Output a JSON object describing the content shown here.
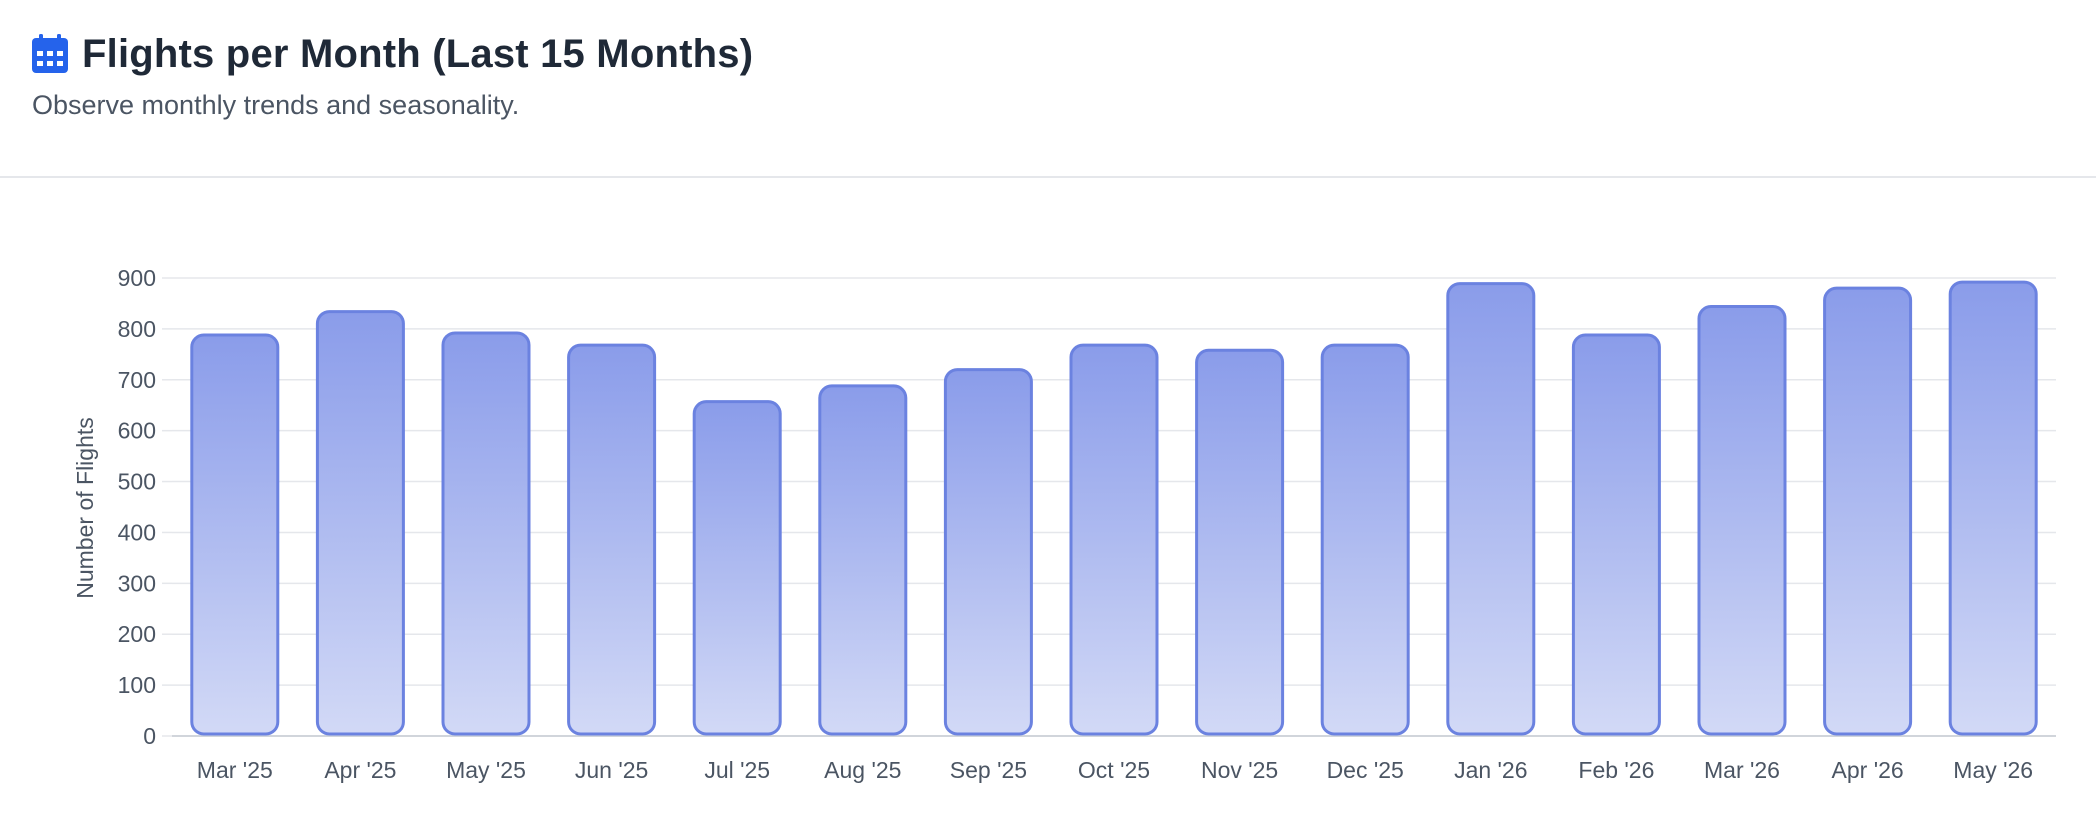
{
  "header": {
    "title": "Flights per Month (Last 15 Months)",
    "subtitle": "Observe monthly trends and seasonality.",
    "icon": "calendar-icon"
  },
  "colors": {
    "accent": "#2563eb",
    "bar_top": "#8a9cea",
    "bar_bottom": "#d2d9f6",
    "bar_border": "#6b82e0",
    "grid": "#e5e7eb",
    "axis_text": "#4b5563"
  },
  "chart_data": {
    "type": "bar",
    "categories": [
      "Mar '25",
      "Apr '25",
      "May '25",
      "Jun '25",
      "Jul '25",
      "Aug '25",
      "Sep '25",
      "Oct '25",
      "Nov '25",
      "Dec '25",
      "Jan '26",
      "Feb '26",
      "Mar '26",
      "Apr '26",
      "May '26"
    ],
    "series": [
      {
        "values": [
          788,
          834,
          792,
          768,
          657,
          688,
          720,
          768,
          758,
          768,
          889,
          788,
          844,
          880,
          892
        ]
      }
    ],
    "title": "",
    "xlabel": "",
    "ylabel": "Number of Flights",
    "ylim": [
      0,
      900
    ],
    "yticks": [
      0,
      100,
      200,
      300,
      400,
      500,
      600,
      700,
      800,
      900
    ],
    "grid": true,
    "legend": "none"
  }
}
